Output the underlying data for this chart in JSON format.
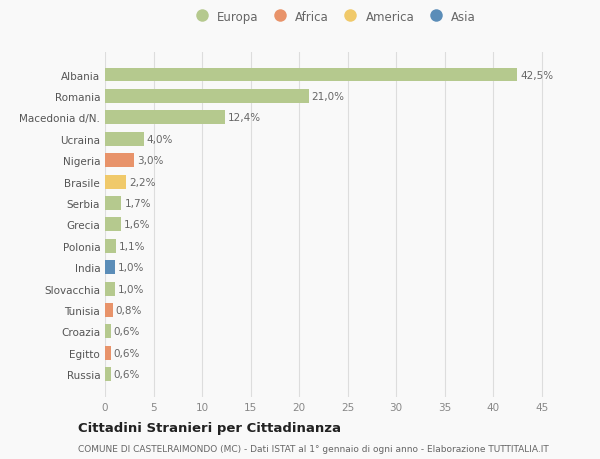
{
  "categories": [
    "Albania",
    "Romania",
    "Macedonia d/N.",
    "Ucraina",
    "Nigeria",
    "Brasile",
    "Serbia",
    "Grecia",
    "Polonia",
    "India",
    "Slovacchia",
    "Tunisia",
    "Croazia",
    "Egitto",
    "Russia"
  ],
  "values": [
    42.5,
    21.0,
    12.4,
    4.0,
    3.0,
    2.2,
    1.7,
    1.6,
    1.1,
    1.0,
    1.0,
    0.8,
    0.6,
    0.6,
    0.6
  ],
  "labels": [
    "42,5%",
    "21,0%",
    "12,4%",
    "4,0%",
    "3,0%",
    "2,2%",
    "1,7%",
    "1,6%",
    "1,1%",
    "1,0%",
    "1,0%",
    "0,8%",
    "0,6%",
    "0,6%",
    "0,6%"
  ],
  "bar_colors": [
    "#b5c98e",
    "#b5c98e",
    "#b5c98e",
    "#b5c98e",
    "#e8936a",
    "#f0c96a",
    "#b5c98e",
    "#b5c98e",
    "#b5c98e",
    "#5b8db8",
    "#b5c98e",
    "#e8936a",
    "#b5c98e",
    "#e8936a",
    "#b5c98e"
  ],
  "legend_items": [
    {
      "label": "Europa",
      "color": "#b5c98e"
    },
    {
      "label": "Africa",
      "color": "#e8936a"
    },
    {
      "label": "America",
      "color": "#f0c96a"
    },
    {
      "label": "Asia",
      "color": "#5b8db8"
    }
  ],
  "title": "Cittadini Stranieri per Cittadinanza",
  "subtitle": "COMUNE DI CASTELRAIMONDO (MC) - Dati ISTAT al 1° gennaio di ogni anno - Elaborazione TUTTITALIA.IT",
  "xlim": [
    0,
    47
  ],
  "xticks": [
    0,
    5,
    10,
    15,
    20,
    25,
    30,
    35,
    40,
    45
  ],
  "background_color": "#f9f9f9",
  "grid_color": "#dddddd",
  "bar_height": 0.65,
  "title_fontsize": 9.5,
  "subtitle_fontsize": 6.5,
  "tick_fontsize": 7.5,
  "label_fontsize": 7.5,
  "legend_fontsize": 8.5
}
